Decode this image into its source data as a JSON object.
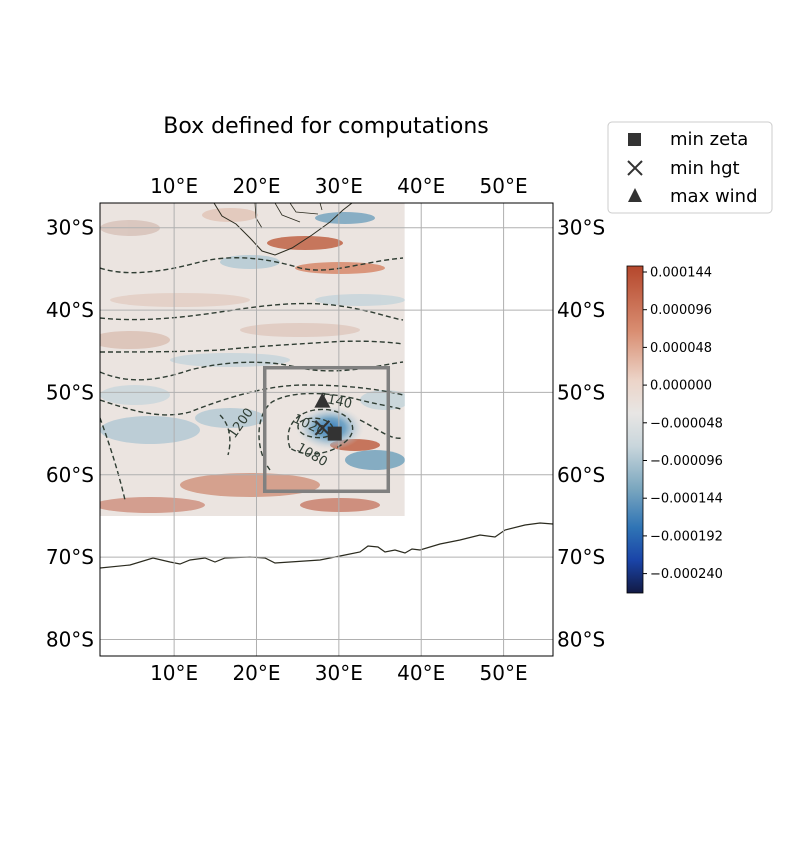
{
  "title": "Box defined for computations",
  "legend": {
    "placement": "upper-right, outside axes",
    "items": [
      {
        "label": "min zeta",
        "marker": "square-icon"
      },
      {
        "label": "min hgt",
        "marker": "x-icon"
      },
      {
        "label": "max wind",
        "marker": "triangle-icon"
      }
    ]
  },
  "map": {
    "projection": "PlateCarree",
    "extent": {
      "lon": [
        1,
        56
      ],
      "lat": [
        -82,
        -27
      ]
    },
    "data_extent": {
      "lon": [
        1,
        38
      ],
      "lat": [
        -65,
        -27
      ]
    },
    "x_ticks": [
      {
        "value": 10,
        "label": "10°E"
      },
      {
        "value": 20,
        "label": "20°E"
      },
      {
        "value": 30,
        "label": "30°E"
      },
      {
        "value": 40,
        "label": "40°E"
      },
      {
        "value": 50,
        "label": "50°E"
      }
    ],
    "y_ticks": [
      {
        "value": -30,
        "label": "30°S"
      },
      {
        "value": -40,
        "label": "40°S"
      },
      {
        "value": -50,
        "label": "50°S"
      },
      {
        "value": -60,
        "label": "60°S"
      },
      {
        "value": -70,
        "label": "70°S"
      },
      {
        "value": -80,
        "label": "80°S"
      }
    ],
    "grid": true,
    "computation_box": {
      "lon": [
        21,
        36
      ],
      "lat": [
        -62,
        -47
      ],
      "color": "#808080"
    },
    "contour_labels": [
      {
        "text": "1140",
        "lon": 29.5,
        "lat": -51.5
      },
      {
        "text": "1200",
        "lon": 18.5,
        "lat": -54
      },
      {
        "text": "1080",
        "lon": 26.5,
        "lat": -58
      },
      {
        "text": "1020",
        "lon": 26.2,
        "lat": -54.4
      }
    ],
    "markers": [
      {
        "type": "min zeta",
        "shape": "square",
        "lon": 29.5,
        "lat": -55
      },
      {
        "type": "min hgt",
        "shape": "x",
        "lon": 28,
        "lat": -54.3
      },
      {
        "type": "max wind",
        "shape": "triangle",
        "lon": 28,
        "lat": -51
      }
    ],
    "marker_color": "#333333",
    "contour_color": "#2f3d33",
    "coast_color": "#2b2b1f"
  },
  "colorbar": {
    "ticks": [
      "0.000144",
      "0.000096",
      "0.000048",
      "0.000000",
      "−0.000048",
      "−0.000096",
      "−0.000144",
      "−0.000192",
      "−0.000240"
    ],
    "colors_top_to_bottom": [
      "#b5472c",
      "#d98e72",
      "#ecd4c8",
      "#e8e6e4",
      "#c9d6dc",
      "#7ba7bf",
      "#2f74b5",
      "#1a44a8",
      "#121a44"
    ]
  }
}
